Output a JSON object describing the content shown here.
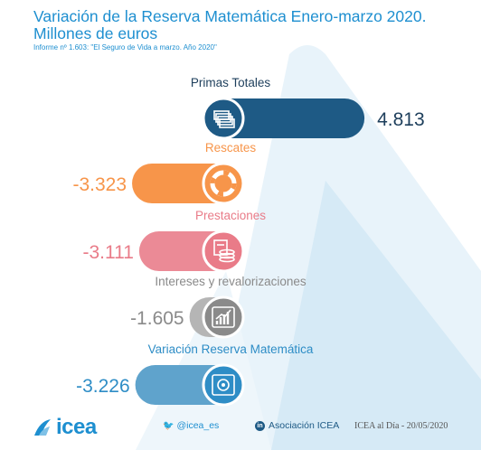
{
  "title": "Variación de la Reserva Matemática Enero-marzo 2020. Millones de euros",
  "subtitle": "Informe nº 1.603: \"El Seguro de Vida a marzo. Año 2020\"",
  "chart_data": {
    "type": "bar",
    "categories": [
      "Primas Totales",
      "Rescates",
      "Prestaciones",
      "Intereses y revalorizaciones",
      "Variación Reserva Matemática"
    ],
    "values": [
      4813,
      -3323,
      -3111,
      -1605,
      -3226
    ],
    "value_labels": [
      "4.813",
      "-3.323",
      "-3.111",
      "-1.605",
      "-3.226"
    ],
    "icons": [
      "banknotes-icon",
      "lifebuoy-icon",
      "coins-calculator-icon",
      "growth-chart-icon",
      "safe-icon"
    ],
    "colors": [
      "#1e5a85",
      "#f7954a",
      "#e97b88",
      "#8a8a8a",
      "#2e8dc6"
    ],
    "bar_colors": [
      "#1e5a85",
      "#f7954a",
      "#eb8a96",
      "#b5b5b5",
      "#5fa3cc"
    ],
    "label_colors": [
      "#1e3f5c",
      "#f7954a",
      "#e97b88",
      "#8a8a8a",
      "#2e8dc6"
    ]
  },
  "footer": {
    "logo": "icea",
    "twitter": "@icea_es",
    "linkedin_badge": "in",
    "linkedin": "Asociación ICEA",
    "date": "ICEA al Día - 20/05/2020"
  }
}
